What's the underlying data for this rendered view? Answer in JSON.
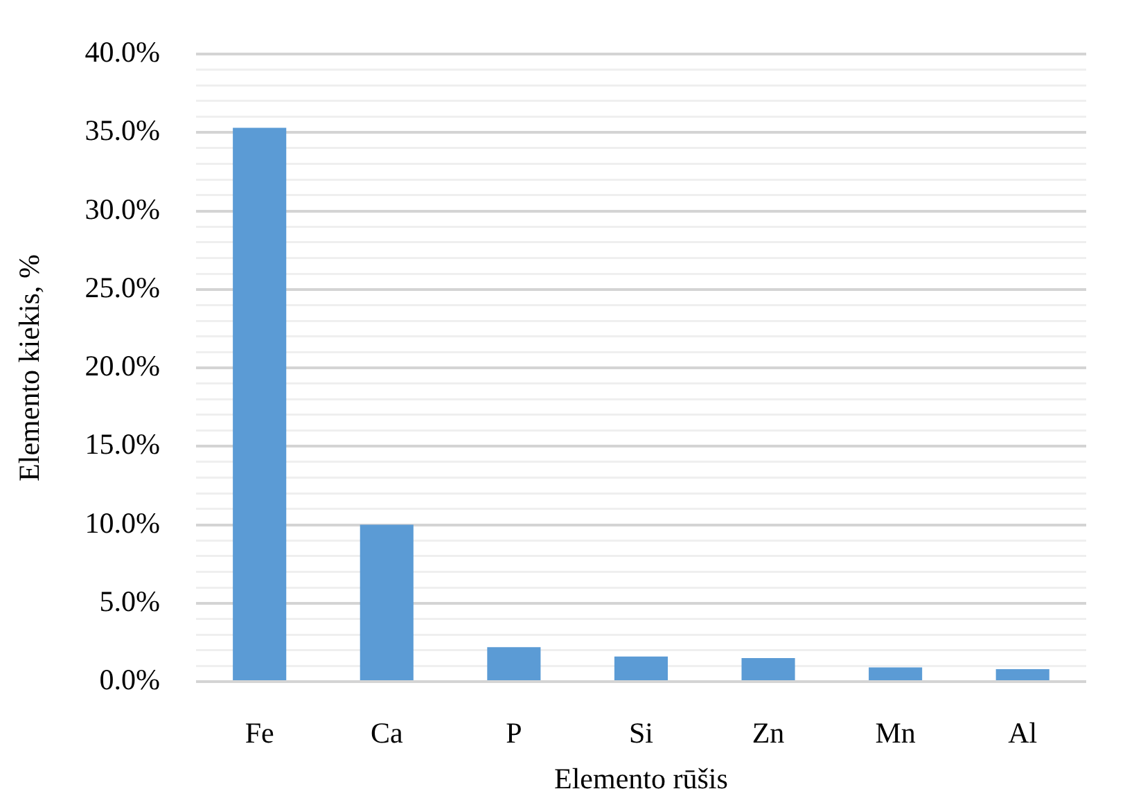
{
  "chart_data": {
    "type": "bar",
    "xlabel": "Elemento rūšis",
    "ylabel": "Elemento kiekis, %",
    "categories": [
      "Fe",
      "Ca",
      "P",
      "Si",
      "Zn",
      "Mn",
      "Al"
    ],
    "values": [
      35.3,
      10.0,
      2.2,
      1.6,
      1.5,
      0.9,
      0.8
    ],
    "color": "#5b9bd5",
    "ylim": [
      0,
      40
    ],
    "yticks": [
      {
        "value": 0,
        "label": "0.0%"
      },
      {
        "value": 1,
        "label": null
      },
      {
        "value": 2,
        "label": null
      },
      {
        "value": 3,
        "label": null
      },
      {
        "value": 4,
        "label": null
      },
      {
        "value": 5,
        "label": "5.0%"
      },
      {
        "value": 6,
        "label": null
      },
      {
        "value": 7,
        "label": null
      },
      {
        "value": 8,
        "label": null
      },
      {
        "value": 9,
        "label": null
      },
      {
        "value": 10,
        "label": "10.0%"
      },
      {
        "value": 11,
        "label": null
      },
      {
        "value": 12,
        "label": null
      },
      {
        "value": 13,
        "label": null
      },
      {
        "value": 14,
        "label": null
      },
      {
        "value": 15,
        "label": "15.0%"
      },
      {
        "value": 16,
        "label": null
      },
      {
        "value": 17,
        "label": null
      },
      {
        "value": 18,
        "label": null
      },
      {
        "value": 19,
        "label": null
      },
      {
        "value": 20,
        "label": "20.0%"
      },
      {
        "value": 21,
        "label": null
      },
      {
        "value": 22,
        "label": null
      },
      {
        "value": 23,
        "label": null
      },
      {
        "value": 24,
        "label": null
      },
      {
        "value": 25,
        "label": "25.0%"
      },
      {
        "value": 26,
        "label": null
      },
      {
        "value": 27,
        "label": null
      },
      {
        "value": 28,
        "label": null
      },
      {
        "value": 29,
        "label": null
      },
      {
        "value": 30,
        "label": "30.0%"
      },
      {
        "value": 31,
        "label": null
      },
      {
        "value": 32,
        "label": null
      },
      {
        "value": 33,
        "label": null
      },
      {
        "value": 34,
        "label": null
      },
      {
        "value": 35,
        "label": "35.0%"
      },
      {
        "value": 36,
        "label": null
      },
      {
        "value": 37,
        "label": null
      },
      {
        "value": 38,
        "label": null
      },
      {
        "value": 39,
        "label": null
      },
      {
        "value": 40,
        "label": "40.0%"
      }
    ],
    "grid": "y"
  }
}
